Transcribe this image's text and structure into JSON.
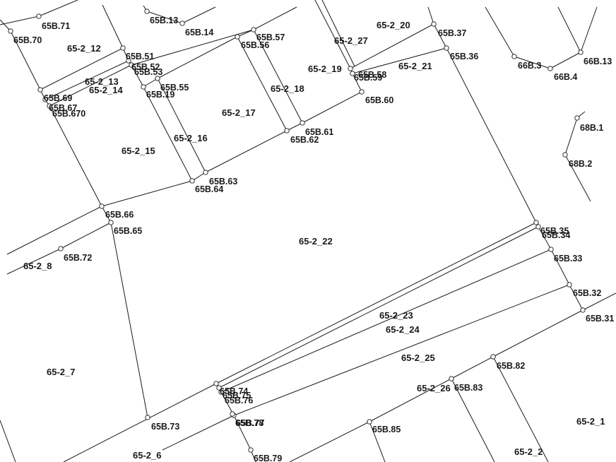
{
  "map": {
    "points": [
      {
        "id": "65B.71",
        "label": "65B.71"
      },
      {
        "id": "65B.70",
        "label": "65B.70"
      },
      {
        "id": "65B.13",
        "label": "65B.13"
      },
      {
        "id": "65B.14",
        "label": "65B.14"
      },
      {
        "id": "65B.57",
        "label": "65B.57"
      },
      {
        "id": "65B.56",
        "label": "65B.56"
      },
      {
        "id": "65B.37",
        "label": "65B.37"
      },
      {
        "id": "65B.36",
        "label": "65B.36"
      },
      {
        "id": "66B.3",
        "label": "66B.3"
      },
      {
        "id": "66B.4",
        "label": "66B.4"
      },
      {
        "id": "66B.13",
        "label": "66B.13"
      },
      {
        "id": "65B.51",
        "label": "65B.51"
      },
      {
        "id": "65B.52",
        "label": "65B.52"
      },
      {
        "id": "65B.53",
        "label": "65B.53"
      },
      {
        "id": "65B.55",
        "label": "65B.55"
      },
      {
        "id": "65B.19",
        "label": "65B.19"
      },
      {
        "id": "65B.69",
        "label": "65B.69"
      },
      {
        "id": "65B.67",
        "label": "65B.67"
      },
      {
        "id": "65B.670",
        "label": "65B.670"
      },
      {
        "id": "65B.58",
        "label": "65B.58"
      },
      {
        "id": "65B.59",
        "label": "65B.59"
      },
      {
        "id": "65B.60",
        "label": "65B.60"
      },
      {
        "id": "65B.61",
        "label": "65B.61"
      },
      {
        "id": "65B.62",
        "label": "65B.62"
      },
      {
        "id": "68B.1",
        "label": "68B.1"
      },
      {
        "id": "68B.2",
        "label": "68B.2"
      },
      {
        "id": "65B.63",
        "label": "65B.63"
      },
      {
        "id": "65B.64",
        "label": "65B.64"
      },
      {
        "id": "65B.66",
        "label": "65B.66"
      },
      {
        "id": "65B.65",
        "label": "65B.65"
      },
      {
        "id": "65B.72",
        "label": "65B.72"
      },
      {
        "id": "65B.35",
        "label": "65B.35"
      },
      {
        "id": "65B.34",
        "label": "65B.34"
      },
      {
        "id": "65B.33",
        "label": "65B.33"
      },
      {
        "id": "65B.32",
        "label": "65B.32"
      },
      {
        "id": "65B.31",
        "label": "65B.31"
      },
      {
        "id": "65B.82",
        "label": "65B.82"
      },
      {
        "id": "65B.83",
        "label": "65B.83"
      },
      {
        "id": "65B.74",
        "label": "65B.74"
      },
      {
        "id": "65B.75",
        "label": "65B.75"
      },
      {
        "id": "65B.76",
        "label": "65B.76"
      },
      {
        "id": "65B.77",
        "label": "65B.77"
      },
      {
        "id": "65B.78",
        "label": "65B.78"
      },
      {
        "id": "65B.73",
        "label": "65B.73"
      },
      {
        "id": "65B.85",
        "label": "65B.85"
      },
      {
        "id": "65B.79",
        "label": "65B.79"
      }
    ],
    "parcels": [
      {
        "id": "65-2_20",
        "label": "65-2_20"
      },
      {
        "id": "65-2_27",
        "label": "65-2_27"
      },
      {
        "id": "65-2_12",
        "label": "65-2_12"
      },
      {
        "id": "65-2_19",
        "label": "65-2_19"
      },
      {
        "id": "65-2_21",
        "label": "65-2_21"
      },
      {
        "id": "65-2_13",
        "label": "65-2_13"
      },
      {
        "id": "65-2_14",
        "label": "65-2_14"
      },
      {
        "id": "65-2_18",
        "label": "65-2_18"
      },
      {
        "id": "65-2_17",
        "label": "65-2_17"
      },
      {
        "id": "65-2_16",
        "label": "65-2_16"
      },
      {
        "id": "65-2_15",
        "label": "65-2_15"
      },
      {
        "id": "65-2_22",
        "label": "65-2_22"
      },
      {
        "id": "65-2_8",
        "label": "65-2_8"
      },
      {
        "id": "65-2_23",
        "label": "65-2_23"
      },
      {
        "id": "65-2_24",
        "label": "65-2_24"
      },
      {
        "id": "65-2_25",
        "label": "65-2_25"
      },
      {
        "id": "65-2_7",
        "label": "65-2_7"
      },
      {
        "id": "65-2_26",
        "label": "65-2_26"
      },
      {
        "id": "65-2_1",
        "label": "65-2_1"
      },
      {
        "id": "65-2_6",
        "label": "65-2_6"
      },
      {
        "id": "65-2_2",
        "label": "65-2_2"
      }
    ]
  }
}
